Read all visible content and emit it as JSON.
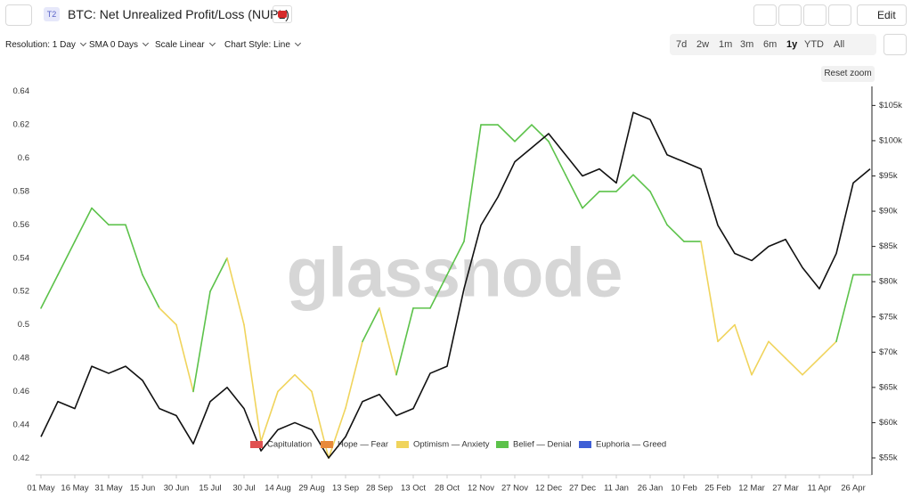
{
  "ui": {
    "badge": "T2",
    "title": "BTC: Net Unrealized Profit/Loss (NUPL)",
    "edit": "Edit",
    "dropdowns": [
      "Resolution: 1 Day",
      "SMA 0 Days",
      "Scale Linear",
      "Chart Style: Line"
    ],
    "ranges": [
      "7d",
      "2w",
      "1m",
      "3m",
      "6m",
      "1y",
      "YTD",
      "All"
    ],
    "active_range": "1y",
    "reset_zoom": "Reset zoom",
    "watermark": "glassnode"
  },
  "chart_data": {
    "type": "line",
    "categories": [
      "01 May",
      null,
      "16 May",
      null,
      "31 May",
      null,
      "15 Jun",
      null,
      "30 Jun",
      null,
      "15 Jul",
      null,
      "30 Jul",
      null,
      "14 Aug",
      null,
      "29 Aug",
      null,
      "13 Sep",
      null,
      "28 Sep",
      null,
      "13 Oct",
      null,
      "28 Oct",
      null,
      "12 Nov",
      null,
      "27 Nov",
      null,
      "12 Dec",
      null,
      "27 Dec",
      null,
      "11 Jan",
      null,
      "26 Jan",
      null,
      "10 Feb",
      null,
      "25 Feb",
      null,
      "12 Mar",
      null,
      "27 Mar",
      null,
      "11 Apr",
      null,
      "26 Apr",
      null
    ],
    "series": [
      {
        "name": "NUPL",
        "values": [
          0.51,
          0.53,
          0.55,
          0.57,
          0.56,
          0.56,
          0.53,
          0.51,
          0.5,
          0.46,
          0.52,
          0.54,
          0.5,
          0.43,
          0.46,
          0.47,
          0.46,
          0.42,
          0.45,
          0.49,
          0.51,
          0.47,
          0.51,
          0.51,
          0.53,
          0.55,
          0.62,
          0.62,
          0.61,
          0.62,
          0.61,
          0.59,
          0.57,
          0.58,
          0.58,
          0.59,
          0.58,
          0.56,
          0.55,
          0.55,
          0.49,
          0.5,
          0.47,
          0.49,
          0.48,
          0.47,
          0.48,
          0.49,
          0.53,
          0.53
        ],
        "colors": [
          "#5cc24a",
          "#5cc24a",
          "#5cc24a",
          "#5cc24a",
          "#5cc24a",
          "#5cc24a",
          "#5cc24a",
          "#5cc24a",
          "#f0d45c",
          "#f0d45c",
          "#5cc24a",
          "#5cc24a",
          "#f0d45c",
          "#f0d45c",
          "#f0d45c",
          "#f0d45c",
          "#f0d45c",
          "#f0d45c",
          "#f0d45c",
          "#f0d45c",
          "#5cc24a",
          "#f0d45c",
          "#5cc24a",
          "#5cc24a",
          "#5cc24a",
          "#5cc24a",
          "#5cc24a",
          "#5cc24a",
          "#5cc24a",
          "#5cc24a",
          "#5cc24a",
          "#5cc24a",
          "#5cc24a",
          "#5cc24a",
          "#5cc24a",
          "#5cc24a",
          "#5cc24a",
          "#5cc24a",
          "#5cc24a",
          "#5cc24a",
          "#f0d45c",
          "#f0d45c",
          "#f0d45c",
          "#f0d45c",
          "#f0d45c",
          "#f0d45c",
          "#f0d45c",
          "#f0d45c",
          "#5cc24a",
          "#5cc24a"
        ]
      },
      {
        "name": "Price",
        "color": "#111111",
        "axis": "y2",
        "values": [
          58000,
          63000,
          62000,
          68000,
          67000,
          68000,
          66000,
          62000,
          61000,
          57000,
          63000,
          65000,
          62000,
          56000,
          59000,
          60000,
          59000,
          55000,
          58000,
          63000,
          64000,
          61000,
          62000,
          67000,
          68000,
          79000,
          88000,
          92000,
          97000,
          99000,
          101000,
          98000,
          95000,
          96000,
          94000,
          104000,
          103000,
          98000,
          97000,
          96000,
          88000,
          84000,
          83000,
          85000,
          86000,
          82000,
          79000,
          84000,
          94000,
          96000
        ]
      }
    ],
    "legend": [
      {
        "name": "Capitulation",
        "color": "#e05252"
      },
      {
        "name": "Hope — Fear",
        "color": "#e8893a"
      },
      {
        "name": "Optimism — Anxiety",
        "color": "#f0d45c"
      },
      {
        "name": "Belief — Denial",
        "color": "#5cc24a"
      },
      {
        "name": "Euphoria — Greed",
        "color": "#3f5fd6"
      }
    ],
    "ylim": [
      0.41,
      0.643
    ],
    "yticks": [
      0.42,
      0.44,
      0.46,
      0.48,
      0.5,
      0.52,
      0.54,
      0.56,
      0.58,
      0.6,
      0.62,
      0.64
    ],
    "y2lim": [
      52600,
      107700
    ],
    "y2ticks": [
      {
        "value": 55000,
        "label": "$55k"
      },
      {
        "value": 60000,
        "label": "$60k"
      },
      {
        "value": 65000,
        "label": "$65k"
      },
      {
        "value": 70000,
        "label": "$70k"
      },
      {
        "value": 75000,
        "label": "$75k"
      },
      {
        "value": 80000,
        "label": "$80k"
      },
      {
        "value": 85000,
        "label": "$85k"
      },
      {
        "value": 90000,
        "label": "$90k"
      },
      {
        "value": 95000,
        "label": "$95k"
      },
      {
        "value": 100000,
        "label": "$100k"
      },
      {
        "value": 105000,
        "label": "$105k"
      }
    ],
    "grid": false
  }
}
